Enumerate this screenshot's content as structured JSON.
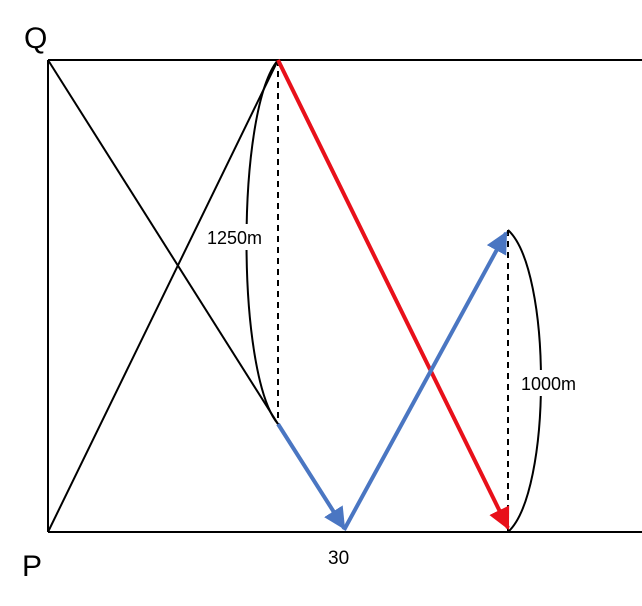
{
  "labels": {
    "top_point": "Q",
    "bottom_point": "P",
    "bottom_value": "30",
    "left_distance": "1250m",
    "right_distance": "1000m"
  },
  "colors": {
    "lines": "#000000",
    "red_arrow": "#e8101a",
    "blue_arrow": "#4a76c2",
    "background": "#ffffff"
  }
}
